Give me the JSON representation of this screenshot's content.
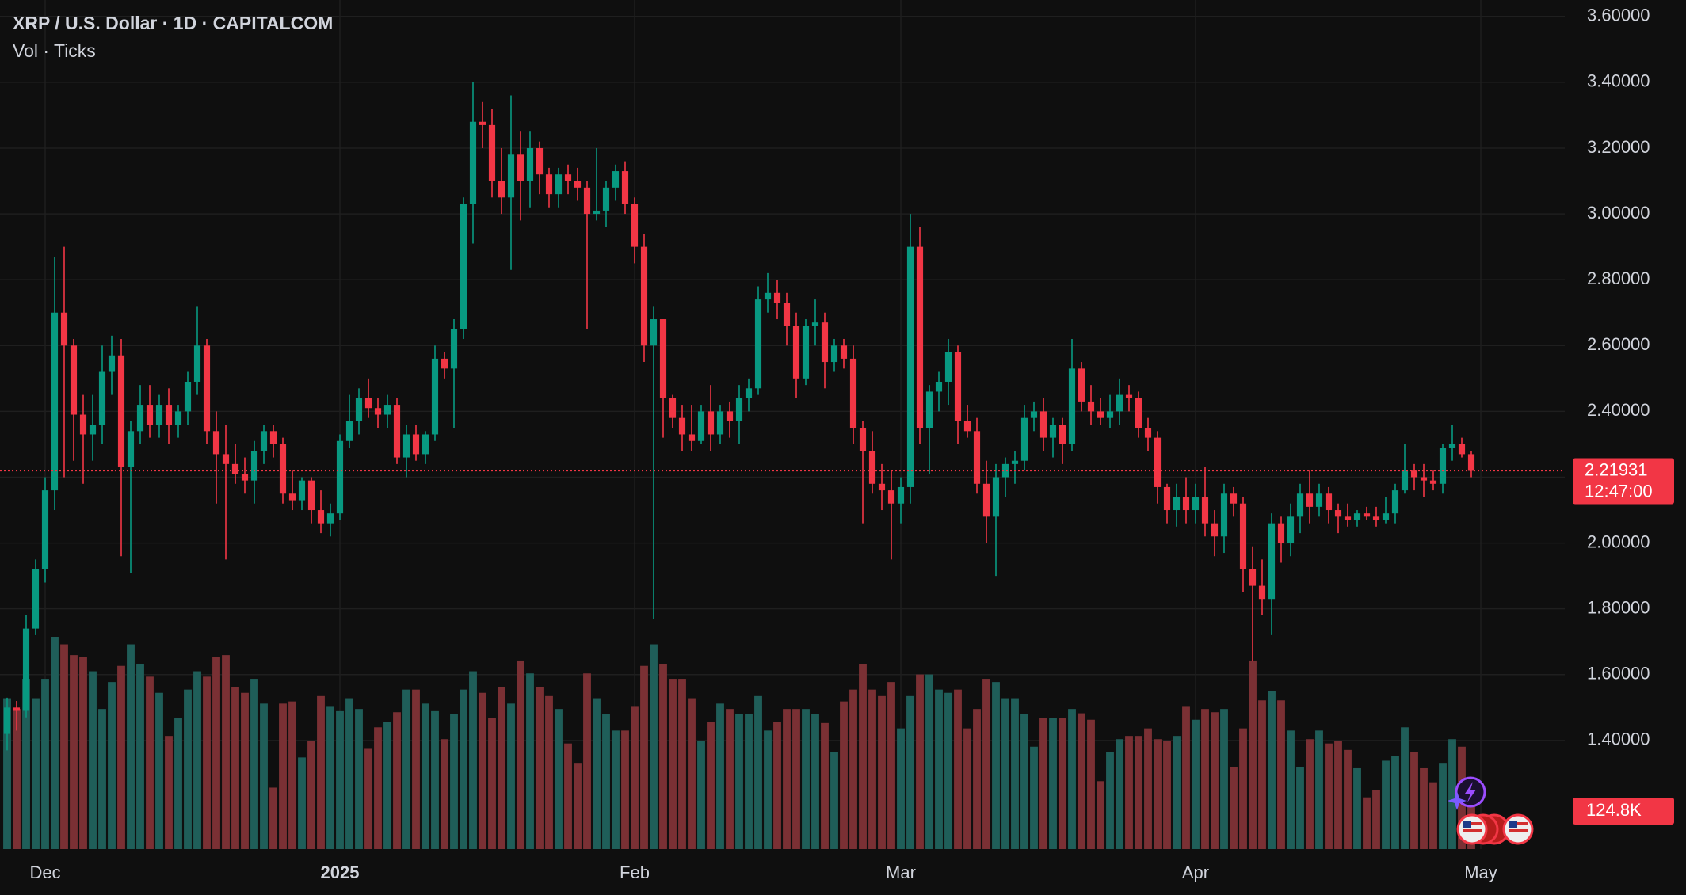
{
  "chart_data": {
    "type": "candlestick",
    "title": "XRP / U.S. Dollar · 1D · CAPITALCOM",
    "subtitle": "Vol · Ticks",
    "open": [
      1.42,
      1.5,
      1.49,
      1.74,
      1.92,
      2.16,
      2.7,
      2.6,
      2.39,
      2.33,
      2.36,
      2.52,
      2.57,
      2.23,
      2.34,
      2.42,
      2.36,
      2.42,
      2.36,
      2.4,
      2.49,
      2.6,
      2.34,
      2.27,
      2.24,
      2.21,
      2.19,
      2.28,
      2.34,
      2.3,
      2.15,
      2.13,
      2.19,
      2.1,
      2.06,
      2.09,
      2.31,
      2.37,
      2.44,
      2.41,
      2.39,
      2.42,
      2.26,
      2.33,
      2.27,
      2.33,
      2.56,
      2.53,
      2.65,
      3.03,
      3.28,
      3.27,
      3.1,
      3.05,
      3.18,
      3.1,
      3.2,
      3.12,
      3.06,
      3.12,
      3.1,
      3.08,
      3.0,
      3.01,
      3.08,
      3.13,
      3.03,
      2.9,
      2.6,
      2.68,
      2.44,
      2.38,
      2.33,
      2.31,
      2.4,
      2.33,
      2.4,
      2.37,
      2.44,
      2.47,
      2.74,
      2.76,
      2.73,
      2.66,
      2.5,
      2.66,
      2.67,
      2.55,
      2.6,
      2.56,
      2.35,
      2.28,
      2.18,
      2.16,
      2.12,
      2.17,
      2.9,
      2.35,
      2.46,
      2.49,
      2.58,
      2.37,
      2.34,
      2.18,
      2.08,
      2.2,
      2.24,
      2.25,
      2.38,
      2.4,
      2.32,
      2.36,
      2.3,
      2.53,
      2.43,
      2.4,
      2.38,
      2.4,
      2.45,
      2.44,
      2.35,
      2.32,
      2.17,
      2.1,
      2.14,
      2.1,
      2.14,
      2.06,
      2.02,
      2.15,
      2.12,
      1.92,
      1.87,
      1.83,
      2.06,
      2.0,
      2.08,
      2.15,
      2.11,
      2.15,
      2.1,
      2.08,
      2.07,
      2.09,
      2.08,
      2.07,
      2.09,
      2.16,
      2.22,
      2.2,
      2.19,
      2.18,
      2.29,
      2.3,
      2.27
    ],
    "high": [
      1.53,
      1.52,
      1.78,
      1.95,
      2.2,
      2.87,
      2.9,
      2.62,
      2.45,
      2.45,
      2.6,
      2.63,
      2.62,
      2.37,
      2.48,
      2.48,
      2.45,
      2.47,
      2.42,
      2.52,
      2.72,
      2.62,
      2.4,
      2.36,
      2.3,
      2.26,
      2.31,
      2.36,
      2.36,
      2.32,
      2.22,
      2.2,
      2.2,
      2.16,
      2.12,
      2.33,
      2.45,
      2.47,
      2.5,
      2.44,
      2.45,
      2.44,
      2.36,
      2.36,
      2.34,
      2.6,
      2.58,
      2.68,
      3.05,
      3.4,
      3.34,
      3.32,
      3.2,
      3.36,
      3.25,
      3.25,
      3.22,
      3.14,
      3.14,
      3.15,
      3.14,
      3.1,
      3.2,
      3.1,
      3.15,
      3.16,
      3.05,
      2.94,
      2.72,
      2.68,
      2.45,
      2.42,
      2.42,
      2.42,
      2.48,
      2.42,
      2.43,
      2.48,
      2.5,
      2.78,
      2.82,
      2.8,
      2.76,
      2.7,
      2.68,
      2.74,
      2.7,
      2.62,
      2.62,
      2.6,
      2.37,
      2.34,
      2.24,
      2.22,
      2.2,
      3.0,
      2.96,
      2.48,
      2.52,
      2.62,
      2.6,
      2.42,
      2.38,
      2.25,
      2.24,
      2.26,
      2.28,
      2.42,
      2.43,
      2.44,
      2.38,
      2.38,
      2.62,
      2.55,
      2.48,
      2.44,
      2.45,
      2.5,
      2.48,
      2.46,
      2.38,
      2.34,
      2.18,
      2.18,
      2.2,
      2.18,
      2.23,
      2.1,
      2.18,
      2.17,
      2.14,
      1.99,
      1.95,
      2.09,
      2.08,
      2.12,
      2.18,
      2.22,
      2.18,
      2.17,
      2.12,
      2.12,
      2.1,
      2.11,
      2.11,
      2.14,
      2.18,
      2.3,
      2.24,
      2.24,
      2.22,
      2.3,
      2.36,
      2.32,
      2.28
    ],
    "low": [
      1.37,
      1.43,
      1.47,
      1.72,
      1.88,
      2.1,
      2.2,
      2.25,
      2.18,
      2.25,
      2.3,
      2.45,
      1.96,
      1.91,
      2.3,
      2.32,
      2.32,
      2.3,
      2.32,
      2.36,
      2.45,
      2.3,
      2.12,
      1.95,
      2.18,
      2.15,
      2.12,
      2.24,
      2.26,
      2.12,
      2.1,
      2.1,
      2.06,
      2.03,
      2.02,
      2.07,
      2.29,
      2.33,
      2.38,
      2.35,
      2.35,
      2.24,
      2.2,
      2.25,
      2.24,
      2.31,
      2.5,
      2.35,
      2.62,
      2.91,
      3.2,
      3.05,
      3.0,
      2.83,
      2.98,
      3.02,
      3.06,
      3.02,
      3.02,
      3.06,
      3.04,
      2.65,
      2.98,
      2.96,
      3.04,
      3.0,
      2.85,
      2.55,
      1.77,
      2.32,
      2.35,
      2.28,
      2.28,
      2.3,
      2.28,
      2.3,
      2.32,
      2.3,
      2.4,
      2.45,
      2.7,
      2.68,
      2.6,
      2.44,
      2.48,
      2.6,
      2.47,
      2.52,
      2.53,
      2.3,
      2.06,
      2.15,
      2.1,
      1.95,
      2.06,
      2.12,
      2.3,
      2.21,
      2.4,
      2.42,
      2.3,
      2.32,
      2.15,
      2.0,
      1.9,
      2.14,
      2.18,
      2.22,
      2.34,
      2.28,
      2.26,
      2.24,
      2.28,
      2.4,
      2.36,
      2.36,
      2.35,
      2.36,
      2.4,
      2.32,
      2.28,
      2.12,
      2.06,
      2.05,
      2.06,
      2.06,
      2.02,
      1.96,
      1.97,
      2.08,
      1.85,
      1.64,
      1.78,
      1.72,
      1.94,
      1.96,
      2.03,
      2.06,
      2.08,
      2.06,
      2.03,
      2.05,
      2.05,
      2.07,
      2.05,
      2.06,
      2.06,
      2.15,
      2.16,
      2.14,
      2.16,
      2.15,
      2.25,
      2.26,
      2.2
    ],
    "close": [
      1.5,
      1.49,
      1.74,
      1.92,
      2.16,
      2.7,
      2.6,
      2.39,
      2.33,
      2.36,
      2.52,
      2.57,
      2.23,
      2.34,
      2.42,
      2.36,
      2.42,
      2.36,
      2.4,
      2.49,
      2.6,
      2.34,
      2.27,
      2.24,
      2.21,
      2.19,
      2.28,
      2.34,
      2.3,
      2.15,
      2.13,
      2.19,
      2.1,
      2.06,
      2.09,
      2.31,
      2.37,
      2.44,
      2.41,
      2.39,
      2.42,
      2.26,
      2.33,
      2.27,
      2.33,
      2.56,
      2.53,
      2.65,
      3.03,
      3.28,
      3.27,
      3.1,
      3.05,
      3.18,
      3.1,
      3.2,
      3.12,
      3.06,
      3.12,
      3.1,
      3.08,
      3.0,
      3.01,
      3.08,
      3.13,
      3.03,
      2.9,
      2.6,
      2.68,
      2.44,
      2.38,
      2.33,
      2.31,
      2.4,
      2.33,
      2.4,
      2.37,
      2.44,
      2.47,
      2.74,
      2.76,
      2.73,
      2.66,
      2.5,
      2.66,
      2.67,
      2.55,
      2.6,
      2.56,
      2.35,
      2.28,
      2.18,
      2.16,
      2.12,
      2.17,
      2.9,
      2.35,
      2.46,
      2.49,
      2.58,
      2.37,
      2.34,
      2.18,
      2.08,
      2.2,
      2.24,
      2.25,
      2.38,
      2.4,
      2.32,
      2.36,
      2.3,
      2.53,
      2.43,
      2.4,
      2.38,
      2.4,
      2.45,
      2.44,
      2.35,
      2.32,
      2.17,
      2.1,
      2.14,
      2.1,
      2.14,
      2.06,
      2.02,
      2.15,
      2.12,
      1.92,
      1.87,
      1.83,
      2.06,
      2.0,
      2.08,
      2.15,
      2.11,
      2.15,
      2.1,
      2.08,
      2.07,
      2.09,
      2.08,
      2.07,
      2.09,
      2.16,
      2.22,
      2.2,
      2.19,
      2.18,
      2.29,
      2.3,
      2.27,
      2.21931
    ],
    "volume": [
      280,
      260,
      316,
      280,
      316,
      394,
      380,
      360,
      356,
      330,
      260,
      310,
      340,
      380,
      344,
      320,
      290,
      210,
      244,
      296,
      330,
      320,
      356,
      360,
      300,
      290,
      316,
      270,
      114,
      270,
      274,
      170,
      200,
      284,
      264,
      256,
      280,
      260,
      186,
      226,
      236,
      254,
      296,
      296,
      270,
      256,
      204,
      250,
      296,
      330,
      290,
      244,
      300,
      270,
      350,
      326,
      300,
      284,
      260,
      196,
      160,
      326,
      280,
      250,
      220,
      220,
      264,
      340,
      380,
      344,
      316,
      316,
      280,
      200,
      236,
      270,
      260,
      250,
      250,
      284,
      220,
      236,
      260,
      260,
      260,
      250,
      234,
      180,
      274,
      296,
      344,
      296,
      284,
      310,
      224,
      284,
      324,
      324,
      296,
      290,
      296,
      224,
      260,
      316,
      310,
      280,
      280,
      250,
      190,
      244,
      244,
      244,
      260,
      252,
      240,
      126,
      180,
      204,
      210,
      210,
      224,
      204,
      200,
      210,
      264,
      240,
      260,
      254,
      260,
      152,
      224,
      350,
      276,
      294,
      276,
      220,
      152,
      204,
      220,
      196,
      200,
      184,
      150,
      96,
      110,
      164,
      172,
      226,
      180,
      150,
      124,
      160,
      204,
      190,
      124.8
    ],
    "last_volume_label": "124.8K",
    "countdown": "12:47:00",
    "xlim": [
      0,
      154
    ],
    "xticks": [
      {
        "value": 4,
        "label": "Dec"
      },
      {
        "value": 35,
        "label": "2025"
      },
      {
        "value": 66,
        "label": "Feb"
      },
      {
        "value": 94,
        "label": "Mar"
      },
      {
        "value": 125,
        "label": "Apr"
      },
      {
        "value": 155,
        "label": "May"
      }
    ],
    "ylim": [
      1.07,
      3.65
    ],
    "yticks": [
      {
        "value": 3.6,
        "label": "3.60000"
      },
      {
        "value": 3.4,
        "label": "3.40000"
      },
      {
        "value": 3.2,
        "label": "3.20000"
      },
      {
        "value": 3.0,
        "label": "3.00000"
      },
      {
        "value": 2.8,
        "label": "2.80000"
      },
      {
        "value": 2.6,
        "label": "2.60000"
      },
      {
        "value": 2.4,
        "label": "2.40000"
      },
      {
        "value": 2.2,
        "label": "2.20000"
      },
      {
        "value": 2.0,
        "label": "2.00000"
      },
      {
        "value": 1.8,
        "label": "1.80000"
      },
      {
        "value": 1.6,
        "label": "1.60000"
      },
      {
        "value": 1.4,
        "label": "1.40000"
      }
    ],
    "grid": true,
    "up_color": "#089981",
    "down_color": "#f23645",
    "volume_up_color": "#1f5e59",
    "volume_down_color": "#7a3034"
  }
}
